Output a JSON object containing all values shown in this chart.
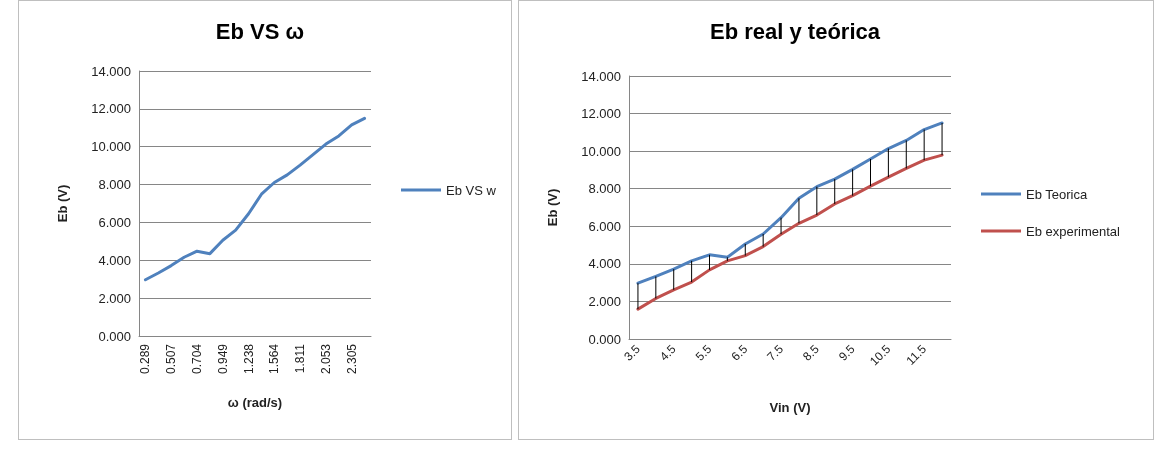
{
  "chart_data": [
    {
      "type": "line",
      "title": "Eb VS ω",
      "xlabel": "ω (rad/s)",
      "ylabel": "Eb (V)",
      "categories": [
        "0.289",
        null,
        "0.507",
        null,
        "0.704",
        null,
        "0.949",
        null,
        "1.238",
        null,
        "1.564",
        null,
        "1.811",
        null,
        "2.053",
        null,
        "2.305",
        null
      ],
      "series": [
        {
          "name": "Eb VS w",
          "color": "#4f81bd",
          "values": [
            2.97,
            3.33,
            3.72,
            4.16,
            4.48,
            4.35,
            5.06,
            5.59,
            6.46,
            7.49,
            8.11,
            8.51,
            9.03,
            9.58,
            10.14,
            10.57,
            11.15,
            11.5
          ]
        }
      ],
      "ylim": [
        0,
        14
      ],
      "yticks": [
        {
          "value": 0,
          "label": "0.000"
        },
        {
          "value": 2,
          "label": "2.000"
        },
        {
          "value": 4,
          "label": "4.000"
        },
        {
          "value": 6,
          "label": "6.000"
        },
        {
          "value": 8,
          "label": "8.000"
        },
        {
          "value": 10,
          "label": "10.000"
        },
        {
          "value": 12,
          "label": "12.000"
        },
        {
          "value": 14,
          "label": "14.000"
        }
      ],
      "grid": "y",
      "legend": "right",
      "marker": "none"
    },
    {
      "type": "line",
      "title": "Eb real y teórica",
      "xlabel": "Vin (V)",
      "ylabel": "Eb (V)",
      "categories": [
        "3.5",
        null,
        "4.5",
        null,
        "5.5",
        null,
        "6.5",
        null,
        "7.5",
        null,
        "8.5",
        null,
        "9.5",
        null,
        "10.5",
        null,
        "11.5",
        null
      ],
      "series": [
        {
          "name": "Eb Teorica",
          "color": "#4f81bd",
          "values": [
            2.97,
            3.33,
            3.72,
            4.16,
            4.48,
            4.35,
            5.06,
            5.59,
            6.46,
            7.49,
            8.11,
            8.51,
            9.03,
            9.58,
            10.14,
            10.57,
            11.15,
            11.5
          ],
          "errors": [
            [
              1.59,
              2.97
            ],
            [
              2.16,
              3.33
            ],
            [
              2.62,
              3.72
            ],
            [
              3.03,
              4.16
            ],
            [
              3.68,
              4.48
            ],
            [
              4.16,
              4.35
            ],
            [
              4.44,
              5.06
            ],
            [
              4.92,
              5.59
            ],
            [
              5.58,
              6.46
            ],
            [
              6.16,
              7.49
            ],
            [
              6.6,
              8.11
            ],
            [
              7.19,
              8.51
            ],
            [
              7.63,
              9.03
            ],
            [
              8.14,
              9.58
            ],
            [
              8.62,
              10.14
            ],
            [
              9.08,
              10.57
            ],
            [
              9.52,
              11.15
            ],
            [
              9.79,
              11.5
            ]
          ]
        },
        {
          "name": "Eb experimental",
          "color": "#c0504d",
          "values": [
            1.59,
            2.16,
            2.62,
            3.03,
            3.68,
            4.16,
            4.44,
            4.92,
            5.58,
            6.16,
            6.6,
            7.19,
            7.63,
            8.14,
            8.62,
            9.08,
            9.52,
            9.79
          ]
        }
      ],
      "ylim": [
        0,
        14
      ],
      "yticks": [
        {
          "value": 0,
          "label": "0.000"
        },
        {
          "value": 2,
          "label": "2.000"
        },
        {
          "value": 4,
          "label": "4.000"
        },
        {
          "value": 6,
          "label": "6.000"
        },
        {
          "value": 8,
          "label": "8.000"
        },
        {
          "value": 10,
          "label": "10.000"
        },
        {
          "value": 12,
          "label": "12.000"
        },
        {
          "value": 14,
          "label": "14.000"
        }
      ],
      "grid": "y",
      "legend": "right",
      "marker": "none"
    }
  ]
}
